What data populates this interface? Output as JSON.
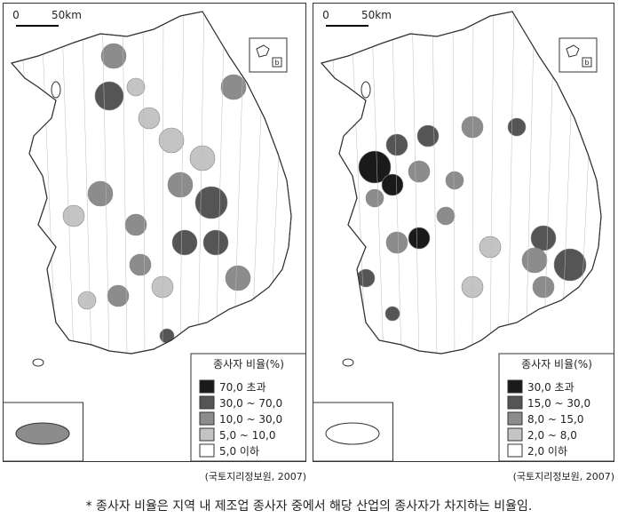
{
  "maps": [
    {
      "scale": {
        "zero": "0",
        "distance": "50km"
      },
      "inset_label": "b",
      "legend": {
        "title": "종사자 비율(%)",
        "items": [
          {
            "label": "70,0 초과",
            "color": "#1a1a1a"
          },
          {
            "label": "30,0 ~ 70,0",
            "color": "#555555"
          },
          {
            "label": "10,0 ~ 30,0",
            "color": "#8c8c8c"
          },
          {
            "label": "5,0 ~ 10,0",
            "color": "#c4c4c4"
          },
          {
            "label": "5,0 이하",
            "color": "#ffffff"
          }
        ]
      },
      "source": "(국토지리정보원, 2007)"
    },
    {
      "scale": {
        "zero": "0",
        "distance": "50km"
      },
      "inset_label": "b",
      "legend": {
        "title": "종사자 비율(%)",
        "items": [
          {
            "label": "30,0 초과",
            "color": "#1a1a1a"
          },
          {
            "label": "15,0 ~ 30,0",
            "color": "#555555"
          },
          {
            "label": "8,0 ~ 15,0",
            "color": "#8c8c8c"
          },
          {
            "label": "2,0 ~ 8,0",
            "color": "#c4c4c4"
          },
          {
            "label": "2,0 이하",
            "color": "#ffffff"
          }
        ]
      },
      "source": "(국토지리정보원, 2007)"
    }
  ],
  "footnote": "* 종사자 비율은 지역 내 제조업 종사자 중에서 해당 산업의 종사자가 차지하는 비율임."
}
